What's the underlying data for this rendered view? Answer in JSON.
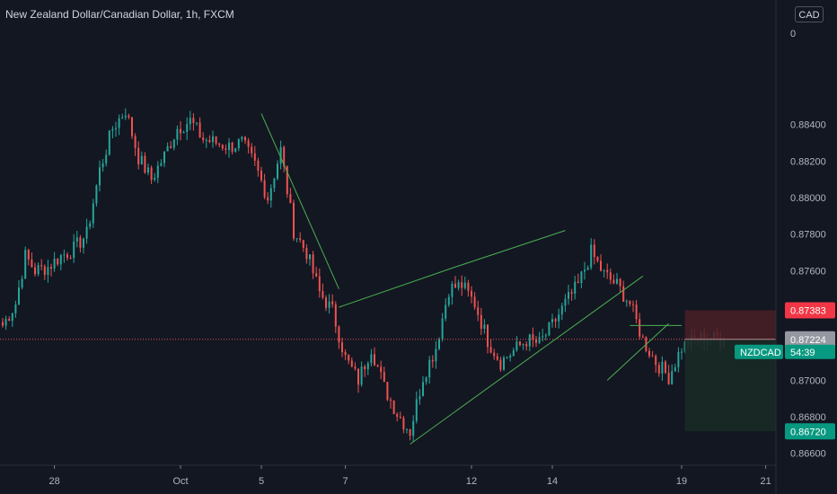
{
  "header": {
    "title": "New Zealand Dollar/Canadian Dollar, 1h, FXCM"
  },
  "currency_button": "CAD",
  "colors": {
    "background": "#131722",
    "up": "#26a69a",
    "down": "#ef5350",
    "trendline": "#4caf50",
    "axis_text": "#b2b5be",
    "stop_zone": "#4a1f26",
    "target_zone": "#1a2a26"
  },
  "chart_data": {
    "type": "candlestick",
    "symbol": "NZDCAD",
    "interval": "1h",
    "source": "FXCM",
    "x_tick_labels": [
      "28",
      "Oct",
      "5",
      "7",
      "12",
      "14",
      "19",
      "21"
    ],
    "y_tick_labels": [
      "0.88400",
      "0.88200",
      "0.88000",
      "0.87800",
      "0.87600",
      "0.87000",
      "0.86800",
      "0.86600"
    ],
    "ylim": [
      0.865,
      0.889
    ],
    "price_path": [
      [
        0,
        0.873
      ],
      [
        4,
        0.8742
      ],
      [
        7,
        0.8768
      ],
      [
        10,
        0.876
      ],
      [
        14,
        0.8762
      ],
      [
        18,
        0.8768
      ],
      [
        22,
        0.8772
      ],
      [
        26,
        0.878
      ],
      [
        30,
        0.8815
      ],
      [
        34,
        0.8838
      ],
      [
        38,
        0.8848
      ],
      [
        42,
        0.8822
      ],
      [
        46,
        0.881
      ],
      [
        50,
        0.8823
      ],
      [
        54,
        0.8838
      ],
      [
        58,
        0.8842
      ],
      [
        62,
        0.8832
      ],
      [
        66,
        0.883
      ],
      [
        70,
        0.8828
      ],
      [
        74,
        0.883
      ],
      [
        78,
        0.8818
      ],
      [
        82,
        0.88
      ],
      [
        86,
        0.8826
      ],
      [
        90,
        0.8782
      ],
      [
        94,
        0.877
      ],
      [
        98,
        0.8748
      ],
      [
        102,
        0.8738
      ],
      [
        106,
        0.8712
      ],
      [
        110,
        0.87
      ],
      [
        114,
        0.8718
      ],
      [
        118,
        0.8696
      ],
      [
        122,
        0.8682
      ],
      [
        126,
        0.8672
      ],
      [
        130,
        0.8702
      ],
      [
        134,
        0.8718
      ],
      [
        138,
        0.875
      ],
      [
        142,
        0.8752
      ],
      [
        146,
        0.8742
      ],
      [
        150,
        0.8722
      ],
      [
        154,
        0.871
      ],
      [
        158,
        0.8716
      ],
      [
        162,
        0.8722
      ],
      [
        166,
        0.872
      ],
      [
        170,
        0.873
      ],
      [
        174,
        0.8742
      ],
      [
        178,
        0.8752
      ],
      [
        182,
        0.877
      ],
      [
        186,
        0.8758
      ],
      [
        190,
        0.8752
      ],
      [
        194,
        0.8742
      ],
      [
        198,
        0.8722
      ],
      [
        202,
        0.871
      ],
      [
        206,
        0.8702
      ],
      [
        210,
        0.8718
      ],
      [
        214,
        0.8722
      ],
      [
        218,
        0.8724
      ],
      [
        222,
        0.8722
      ]
    ],
    "current_price": "0.87224",
    "current_price_label": "NZDCAD",
    "countdown": "54:39",
    "stop_price": "0.87383",
    "target_price": "0.86720",
    "trendlines": [
      [
        [
          80,
          0.8846
        ],
        [
          104,
          0.875
        ]
      ],
      [
        [
          104,
          0.874
        ],
        [
          140,
          0.8762
        ]
      ],
      [
        [
          140,
          0.8762
        ],
        [
          174,
          0.8782
        ]
      ],
      [
        [
          126,
          0.8665
        ],
        [
          198,
          0.8757
        ]
      ],
      [
        [
          187,
          0.87
        ],
        [
          206,
          0.8731
        ]
      ],
      [
        [
          194,
          0.873
        ],
        [
          210,
          0.873
        ]
      ]
    ],
    "position": {
      "start_x": 211,
      "end_x": 234,
      "entry": 0.87224,
      "stop": 0.87383,
      "target": 0.8672
    }
  }
}
